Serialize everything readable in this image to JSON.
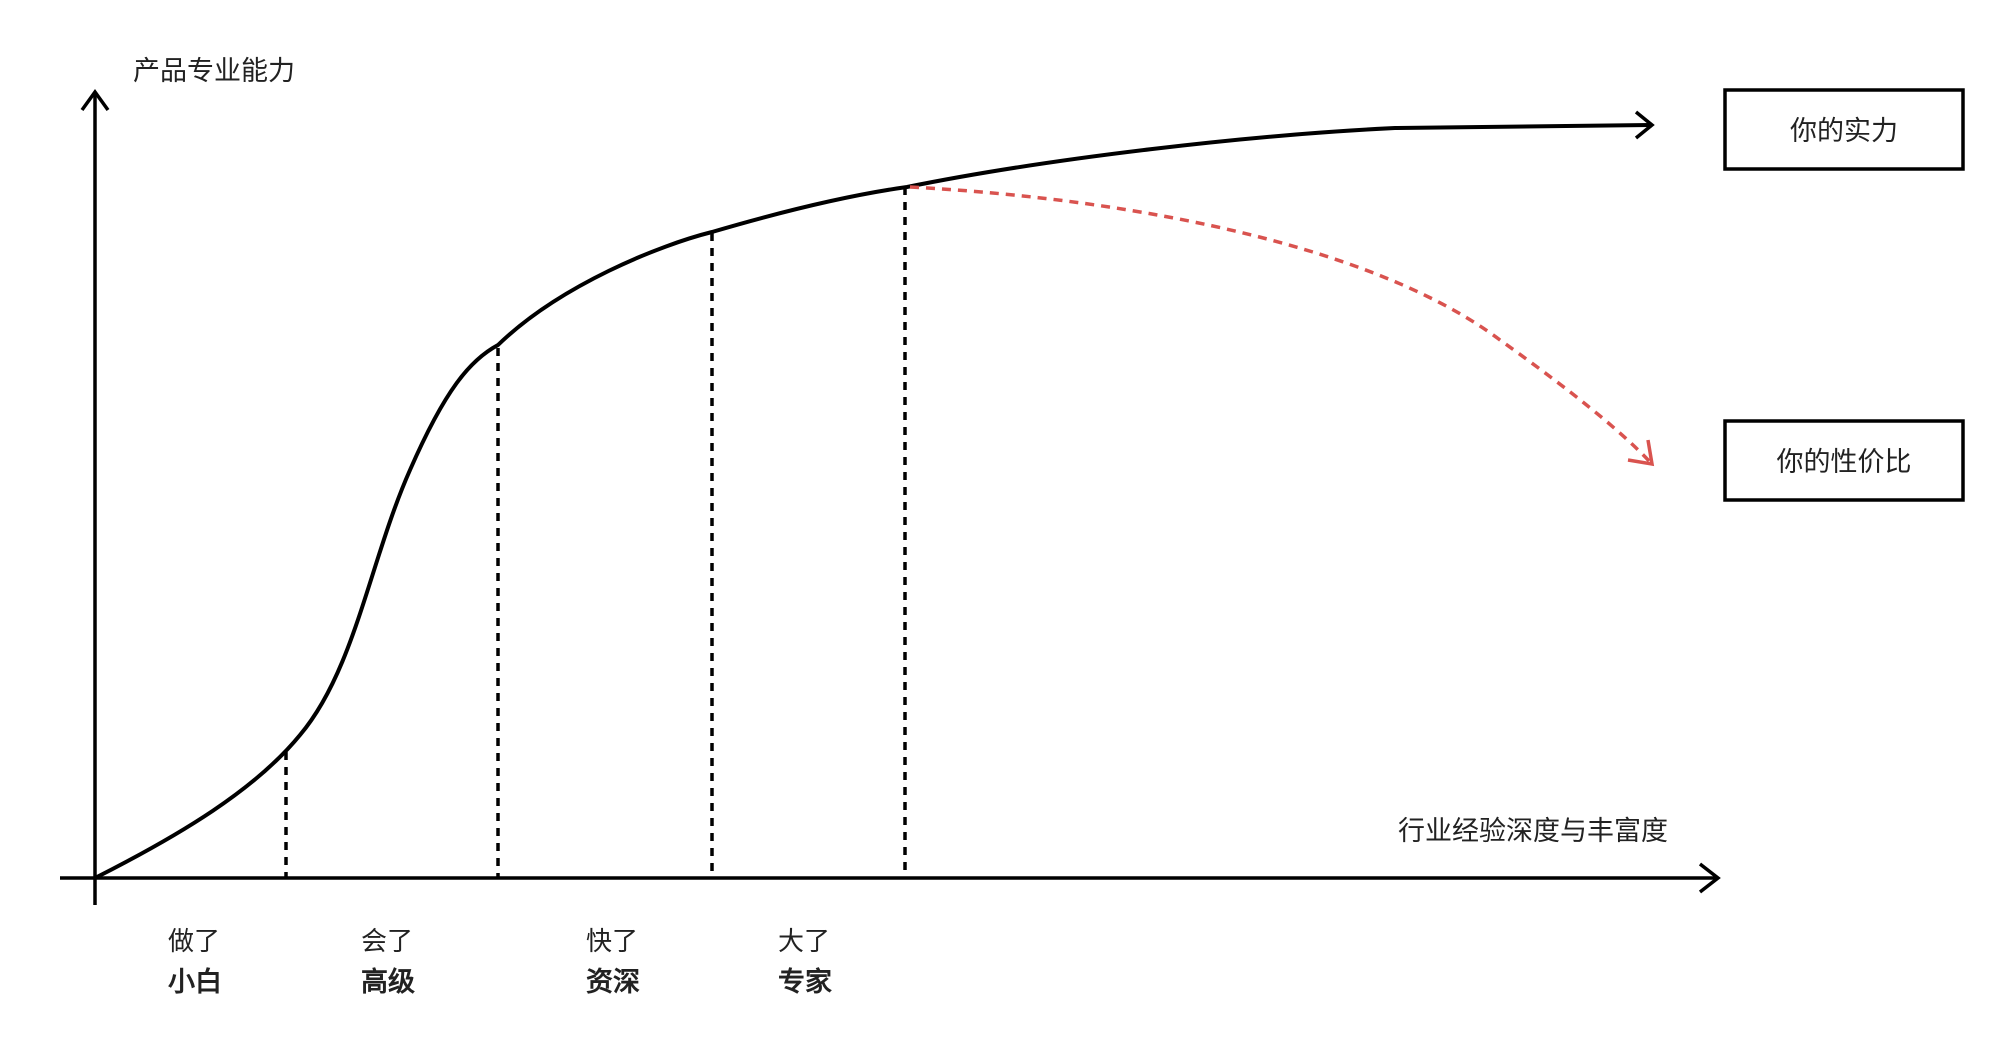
{
  "y_axis_label": "产品专业能力",
  "x_axis_label": "行业经验深度与丰富度",
  "stages": [
    {
      "top": "做了",
      "bottom": "小白"
    },
    {
      "top": "会了",
      "bottom": "高级"
    },
    {
      "top": "快了",
      "bottom": "资深"
    },
    {
      "top": "大了",
      "bottom": "专家"
    }
  ],
  "boxes": {
    "strength": "你的实力",
    "value": "你的性价比"
  },
  "colors": {
    "line": "#000000",
    "dashed_arrow": "#d9534f",
    "text": "#222222"
  }
}
